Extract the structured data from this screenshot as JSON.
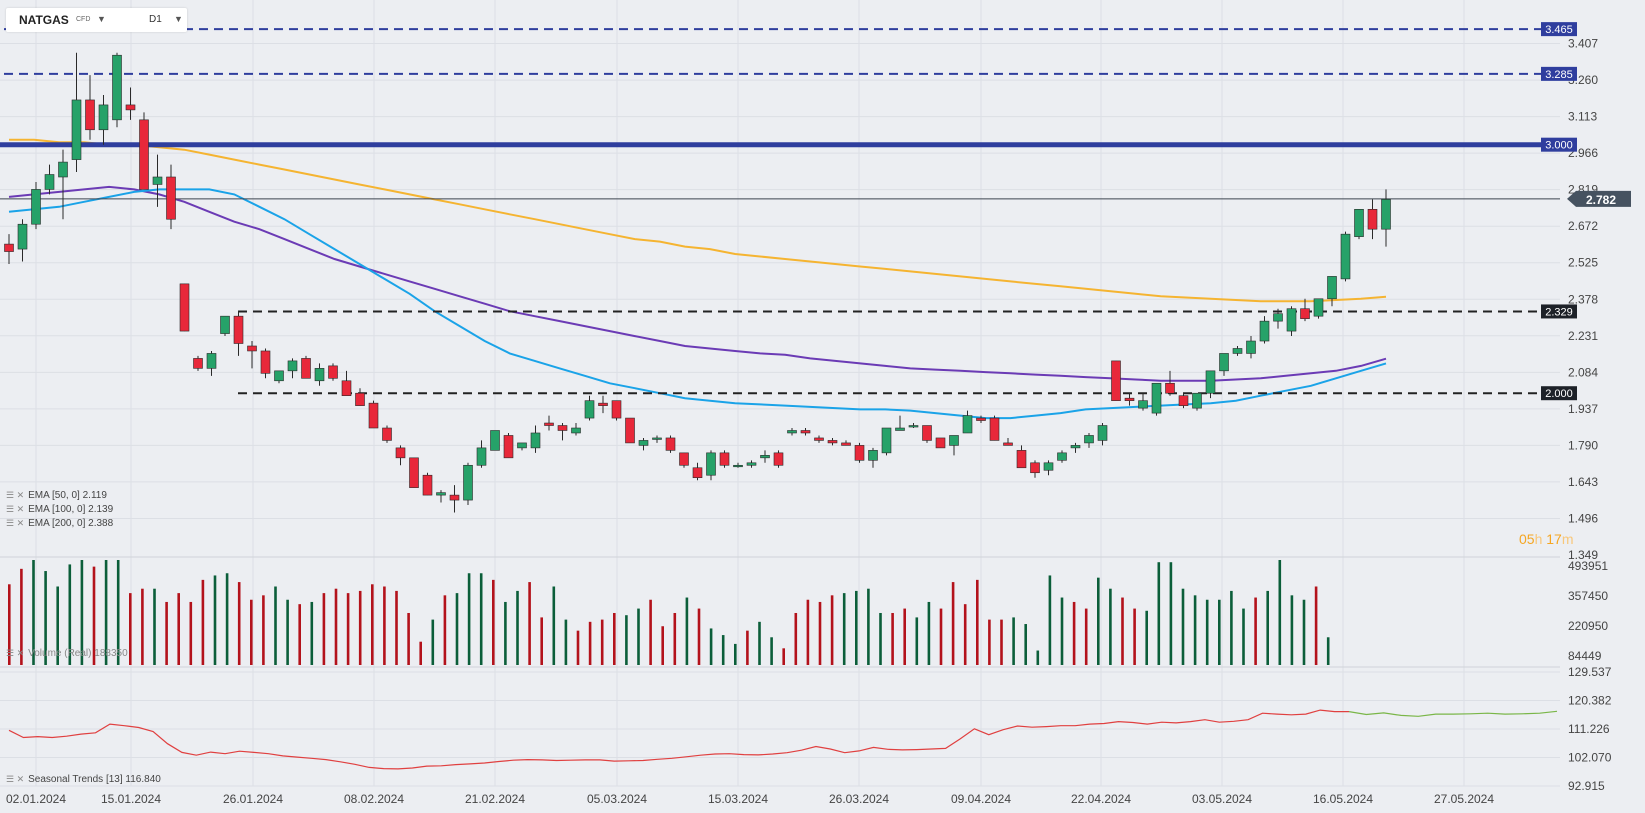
{
  "header": {
    "symbol": "NATGAS",
    "symbol_type": "CFD",
    "timeframe": "D1"
  },
  "indicators": [
    {
      "label": "EMA [50, 0] 2.119"
    },
    {
      "label": "EMA [100, 0] 2.139"
    },
    {
      "label": "EMA [200, 0] 2.388"
    }
  ],
  "volume_label": "Volume (Real) 188350",
  "seasonal_label": "Seasonal Trends [13] 116.840",
  "timer": {
    "h": "05",
    "h_unit": "h",
    "m": "17",
    "m_unit": "m"
  },
  "colors": {
    "background": "#eceef2",
    "bull": "#26a269",
    "bear": "#e8283a",
    "ema50": "#1aa3e8",
    "ema100": "#6b3bb5",
    "ema200": "#f5b431",
    "level_strong": "#2f3e9e",
    "vol_up": "#0b5e3a",
    "vol_down": "#b3121b",
    "seasonal_hist": "#e04040",
    "seasonal_proj": "#7ab648"
  },
  "chart_data": [
    {
      "type": "candlestick",
      "title": "NATGAS CFD D1",
      "ylim": [
        1.349,
        3.55
      ],
      "y_ticks": [
        "3.407",
        "3.260",
        "3.113",
        "2.966",
        "2.819",
        "2.672",
        "2.525",
        "2.378",
        "2.231",
        "2.084",
        "1.937",
        "1.790",
        "1.643",
        "1.496",
        "1.349"
      ],
      "x_ticks": [
        "02.01.2024",
        "15.01.2024",
        "26.01.2024",
        "08.02.2024",
        "21.02.2024",
        "05.03.2024",
        "15.03.2024",
        "26.03.2024",
        "09.04.2024",
        "22.04.2024",
        "03.05.2024",
        "16.05.2024",
        "27.05.2024"
      ],
      "current_price": "2.782",
      "levels": [
        {
          "value": 3.465,
          "label": "3.465",
          "style": "dashed-blue"
        },
        {
          "value": 3.285,
          "label": "3.285",
          "style": "dashed-blue"
        },
        {
          "value": 3.0,
          "label": "3.000",
          "style": "solid-blue"
        },
        {
          "value": 2.329,
          "label": "2.329",
          "style": "dashed-black"
        },
        {
          "value": 2.0,
          "label": "2.000",
          "style": "dashed-black"
        }
      ],
      "candles": [
        [
          2.6,
          2.64,
          2.52,
          2.57
        ],
        [
          2.58,
          2.7,
          2.53,
          2.68
        ],
        [
          2.68,
          2.85,
          2.66,
          2.82
        ],
        [
          2.82,
          2.92,
          2.8,
          2.88
        ],
        [
          2.87,
          2.98,
          2.7,
          2.93
        ],
        [
          2.94,
          3.37,
          2.89,
          3.18
        ],
        [
          3.18,
          3.28,
          3.02,
          3.06
        ],
        [
          3.06,
          3.2,
          3.0,
          3.16
        ],
        [
          3.1,
          3.37,
          3.07,
          3.36
        ],
        [
          3.16,
          3.23,
          3.1,
          3.14
        ],
        [
          3.1,
          3.13,
          2.82,
          2.82
        ],
        [
          2.84,
          2.96,
          2.75,
          2.87
        ],
        [
          2.87,
          2.92,
          2.66,
          2.7
        ],
        [
          2.44,
          2.44,
          2.25,
          2.25
        ],
        [
          2.14,
          2.15,
          2.09,
          2.1
        ],
        [
          2.1,
          2.17,
          2.07,
          2.16
        ],
        [
          2.24,
          2.31,
          2.23,
          2.31
        ],
        [
          2.31,
          2.33,
          2.15,
          2.2
        ],
        [
          2.19,
          2.21,
          2.1,
          2.17
        ],
        [
          2.17,
          2.18,
          2.06,
          2.08
        ],
        [
          2.05,
          2.09,
          2.04,
          2.09
        ],
        [
          2.09,
          2.14,
          2.06,
          2.13
        ],
        [
          2.14,
          2.15,
          2.06,
          2.06
        ],
        [
          2.05,
          2.12,
          2.03,
          2.1
        ],
        [
          2.11,
          2.12,
          2.05,
          2.06
        ],
        [
          2.05,
          2.09,
          1.99,
          1.99
        ],
        [
          2.0,
          2.02,
          1.95,
          1.95
        ],
        [
          1.96,
          1.97,
          1.86,
          1.86
        ],
        [
          1.86,
          1.87,
          1.8,
          1.81
        ],
        [
          1.78,
          1.79,
          1.71,
          1.74
        ],
        [
          1.74,
          1.74,
          1.62,
          1.62
        ],
        [
          1.67,
          1.68,
          1.59,
          1.59
        ],
        [
          1.59,
          1.61,
          1.56,
          1.6
        ],
        [
          1.59,
          1.63,
          1.52,
          1.57
        ],
        [
          1.57,
          1.72,
          1.55,
          1.71
        ],
        [
          1.71,
          1.81,
          1.7,
          1.78
        ],
        [
          1.77,
          1.85,
          1.78,
          1.85
        ],
        [
          1.83,
          1.84,
          1.74,
          1.74
        ],
        [
          1.78,
          1.8,
          1.77,
          1.8
        ],
        [
          1.78,
          1.87,
          1.76,
          1.84
        ],
        [
          1.88,
          1.91,
          1.85,
          1.87
        ],
        [
          1.87,
          1.88,
          1.81,
          1.85
        ],
        [
          1.84,
          1.88,
          1.83,
          1.86
        ],
        [
          1.9,
          1.99,
          1.89,
          1.97
        ],
        [
          1.96,
          1.99,
          1.92,
          1.95
        ],
        [
          1.97,
          1.97,
          1.89,
          1.9
        ],
        [
          1.9,
          1.89,
          1.8,
          1.8
        ],
        [
          1.79,
          1.82,
          1.77,
          1.81
        ],
        [
          1.82,
          1.83,
          1.8,
          1.82
        ],
        [
          1.82,
          1.83,
          1.76,
          1.77
        ],
        [
          1.76,
          1.76,
          1.7,
          1.71
        ],
        [
          1.7,
          1.72,
          1.65,
          1.66
        ],
        [
          1.67,
          1.77,
          1.65,
          1.76
        ],
        [
          1.76,
          1.77,
          1.7,
          1.71
        ],
        [
          1.71,
          1.72,
          1.7,
          1.71
        ],
        [
          1.71,
          1.73,
          1.7,
          1.72
        ],
        [
          1.74,
          1.77,
          1.72,
          1.75
        ],
        [
          1.76,
          1.77,
          1.7,
          1.71
        ],
        [
          1.84,
          1.86,
          1.83,
          1.85
        ],
        [
          1.85,
          1.86,
          1.83,
          1.84
        ],
        [
          1.82,
          1.83,
          1.8,
          1.81
        ],
        [
          1.81,
          1.82,
          1.79,
          1.8
        ],
        [
          1.8,
          1.81,
          1.79,
          1.79
        ],
        [
          1.79,
          1.8,
          1.72,
          1.73
        ],
        [
          1.73,
          1.78,
          1.7,
          1.77
        ],
        [
          1.76,
          1.86,
          1.75,
          1.86
        ],
        [
          1.85,
          1.91,
          1.85,
          1.86
        ],
        [
          1.87,
          1.88,
          1.86,
          1.87
        ],
        [
          1.87,
          1.87,
          1.8,
          1.81
        ],
        [
          1.82,
          1.82,
          1.78,
          1.78
        ],
        [
          1.79,
          1.83,
          1.75,
          1.83
        ],
        [
          1.84,
          1.93,
          1.84,
          1.91
        ],
        [
          1.9,
          1.91,
          1.88,
          1.89
        ],
        [
          1.9,
          1.91,
          1.81,
          1.81
        ],
        [
          1.8,
          1.82,
          1.79,
          1.79
        ],
        [
          1.77,
          1.79,
          1.7,
          1.7
        ],
        [
          1.72,
          1.73,
          1.66,
          1.68
        ],
        [
          1.69,
          1.73,
          1.67,
          1.72
        ],
        [
          1.73,
          1.77,
          1.72,
          1.76
        ],
        [
          1.78,
          1.8,
          1.76,
          1.79
        ],
        [
          1.8,
          1.84,
          1.78,
          1.83
        ],
        [
          1.81,
          1.88,
          1.79,
          1.87
        ],
        [
          2.13,
          2.13,
          1.97,
          1.97
        ],
        [
          1.98,
          2.0,
          1.95,
          1.97
        ],
        [
          1.94,
          2.0,
          1.93,
          1.97
        ],
        [
          1.92,
          2.04,
          1.91,
          2.04
        ],
        [
          2.04,
          2.09,
          1.99,
          2.0
        ],
        [
          1.99,
          2.0,
          1.94,
          1.95
        ],
        [
          1.94,
          2.0,
          1.93,
          2.0
        ],
        [
          2.0,
          2.09,
          1.98,
          2.09
        ],
        [
          2.09,
          2.16,
          2.07,
          2.16
        ],
        [
          2.16,
          2.19,
          2.15,
          2.18
        ],
        [
          2.16,
          2.23,
          2.14,
          2.21
        ],
        [
          2.21,
          2.31,
          2.2,
          2.29
        ],
        [
          2.29,
          2.34,
          2.26,
          2.32
        ],
        [
          2.25,
          2.35,
          2.23,
          2.34
        ],
        [
          2.34,
          2.38,
          2.29,
          2.3
        ],
        [
          2.31,
          2.38,
          2.3,
          2.38
        ],
        [
          2.38,
          2.47,
          2.35,
          2.47
        ],
        [
          2.46,
          2.65,
          2.45,
          2.64
        ],
        [
          2.63,
          2.74,
          2.62,
          2.74
        ],
        [
          2.74,
          2.78,
          2.62,
          2.66
        ],
        [
          2.66,
          2.82,
          2.59,
          2.78
        ]
      ],
      "ema50": [
        2.73,
        2.74,
        2.75,
        2.77,
        2.79,
        2.81,
        2.82,
        2.82,
        2.82,
        2.8,
        2.75,
        2.7,
        2.64,
        2.58,
        2.52,
        2.46,
        2.4,
        2.33,
        2.27,
        2.21,
        2.16,
        2.13,
        2.1,
        2.07,
        2.04,
        2.02,
        2.0,
        1.98,
        1.97,
        1.96,
        1.955,
        1.95,
        1.945,
        1.94,
        1.935,
        1.935,
        1.93,
        1.92,
        1.91,
        1.9,
        1.9,
        1.91,
        1.92,
        1.935,
        1.94,
        1.945,
        1.95,
        1.955,
        1.96,
        1.97,
        1.99,
        2.01,
        2.03,
        2.06,
        2.09,
        2.12
      ],
      "ema100": [
        2.79,
        2.8,
        2.81,
        2.82,
        2.83,
        2.82,
        2.8,
        2.77,
        2.73,
        2.69,
        2.66,
        2.62,
        2.58,
        2.54,
        2.51,
        2.48,
        2.45,
        2.42,
        2.39,
        2.36,
        2.33,
        2.31,
        2.29,
        2.27,
        2.25,
        2.23,
        2.21,
        2.19,
        2.18,
        2.17,
        2.16,
        2.155,
        2.14,
        2.13,
        2.12,
        2.11,
        2.1,
        2.095,
        2.09,
        2.085,
        2.08,
        2.075,
        2.07,
        2.065,
        2.06,
        2.055,
        2.05,
        2.05,
        2.05,
        2.055,
        2.06,
        2.07,
        2.08,
        2.09,
        2.11,
        2.139
      ],
      "ema200": [
        3.02,
        3.02,
        3.01,
        3.01,
        3.0,
        3.0,
        2.99,
        2.98,
        2.96,
        2.94,
        2.92,
        2.9,
        2.88,
        2.86,
        2.84,
        2.82,
        2.8,
        2.78,
        2.76,
        2.74,
        2.72,
        2.7,
        2.68,
        2.66,
        2.64,
        2.62,
        2.61,
        2.59,
        2.58,
        2.56,
        2.55,
        2.54,
        2.53,
        2.52,
        2.51,
        2.5,
        2.49,
        2.48,
        2.47,
        2.46,
        2.45,
        2.44,
        2.43,
        2.42,
        2.41,
        2.4,
        2.39,
        2.385,
        2.38,
        2.375,
        2.37,
        2.37,
        2.37,
        2.375,
        2.38,
        2.388
      ]
    },
    {
      "type": "bar",
      "title": "Volume (Real) 188350",
      "ylim": [
        44449,
        520000
      ],
      "y_ticks": [
        "493951",
        "357450",
        "220950",
        "84449"
      ],
      "values": [
        410000,
        480000,
        520000,
        470000,
        400000,
        500000,
        520000,
        490000,
        520000,
        520000,
        370000,
        390000,
        390000,
        330000,
        370000,
        330000,
        430000,
        450000,
        460000,
        420000,
        340000,
        360000,
        400000,
        340000,
        320000,
        330000,
        370000,
        390000,
        370000,
        380000,
        410000,
        400000,
        380000,
        280000,
        150000,
        250000,
        360000,
        370000,
        460000,
        460000,
        430000,
        330000,
        380000,
        420000,
        260000,
        400000,
        250000,
        200000,
        240000,
        250000,
        280000,
        270000,
        300000,
        340000,
        220000,
        280000,
        350000,
        300000,
        210000,
        180000,
        140000,
        200000,
        240000,
        170000,
        120000,
        280000,
        340000,
        330000,
        360000,
        370000,
        380000,
        390000,
        280000,
        280000,
        300000,
        260000,
        330000,
        300000,
        420000,
        320000,
        430000,
        250000,
        250000,
        260000,
        230000,
        110000,
        450000,
        350000,
        330000,
        300000,
        440000,
        390000,
        350000,
        300000,
        290000,
        510000,
        510000,
        390000,
        360000,
        340000,
        340000,
        380000,
        300000,
        350000,
        380000,
        520000,
        360000,
        340000,
        400000,
        170000
      ]
    },
    {
      "type": "line",
      "title": "Seasonal Trends [13] 116.840",
      "ylim": [
        92.915,
        129.537
      ],
      "y_ticks": [
        "129.537",
        "120.382",
        "111.226",
        "102.070",
        "92.915"
      ],
      "historical": [
        110.8,
        108.5,
        108.8,
        108.5,
        108.9,
        109.6,
        110.0,
        112.8,
        112.3,
        111.7,
        110.4,
        106.5,
        103.7,
        102.8,
        103.8,
        103.3,
        104.1,
        103.7,
        103.3,
        102.6,
        102.2,
        101.8,
        101.4,
        100.7,
        99.9,
        98.9,
        98.5,
        98.4,
        98.7,
        99.3,
        99.4,
        99.8,
        100.0,
        100.3,
        100.8,
        101.2,
        101.4,
        101.3,
        101.1,
        101.2,
        101.3,
        101.3,
        100.9,
        101.0,
        101.1,
        101.5,
        101.8,
        102.3,
        102.8,
        103.2,
        103.3,
        103.0,
        102.9,
        103.2,
        103.6,
        104.4,
        105.6,
        104.8,
        103.6,
        104.2,
        105.3,
        104.7,
        104.5,
        104.6,
        104.8,
        105.0,
        108.0,
        111.3,
        109.4,
        111.0,
        112.2,
        111.8,
        112.0,
        112.3,
        112.3,
        112.8,
        113.0,
        113.6,
        113.3,
        112.8,
        113.4,
        113.2,
        113.6,
        114.2,
        113.4,
        113.7,
        114.2,
        116.3,
        116.0,
        115.8,
        116.0,
        117.3,
        116.8,
        116.8
      ],
      "projection": [
        116.8,
        115.9,
        116.4,
        115.6,
        115.3,
        116.0,
        116.0,
        116.1,
        116.3,
        116.0,
        116.1,
        116.3,
        116.9
      ]
    }
  ]
}
